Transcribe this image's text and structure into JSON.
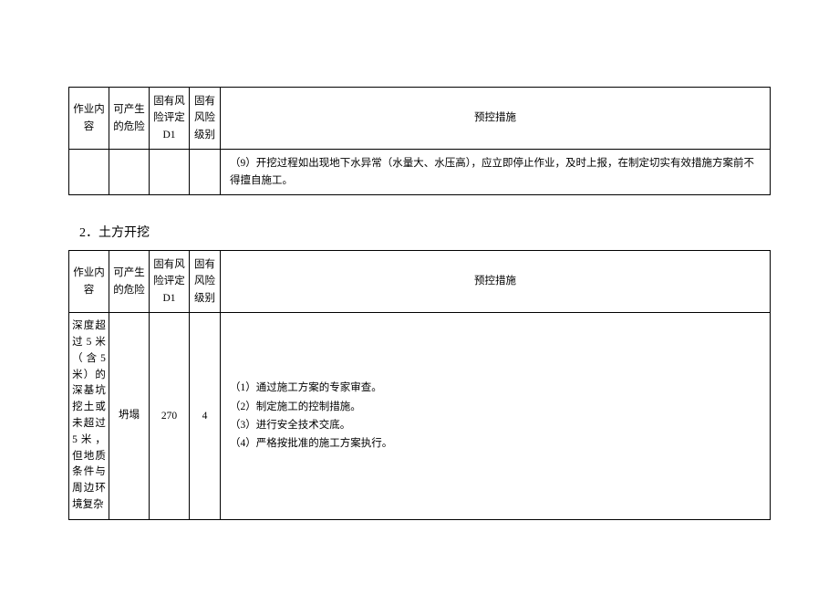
{
  "table1": {
    "headers": {
      "c1": "作业内容",
      "c2": "可产生的危险",
      "c3": "固有风险评定D1",
      "c4": "固有风险级别",
      "c5": "预控措施"
    },
    "row": {
      "c1": "",
      "c2": "",
      "c3": "",
      "c4": "",
      "c5": "（9）开挖过程如出现地下水异常（水量大、水压高），应立即停止作业，及时上报，在制定切实有效措施方案前不得擅自施工。"
    }
  },
  "section2_title": "2．土方开挖",
  "table2": {
    "headers": {
      "c1": "作业内容",
      "c2": "可产生的危险",
      "c3": "固有风险评定D1",
      "c4": "固有风险级别",
      "c5": "预控措施"
    },
    "row": {
      "c1": "深度超过5米（含5米）的深基坑挖土或未超过5米，但地质条件与周边环境复杂",
      "c2": "坍塌",
      "c3": "270",
      "c4": "4",
      "m1": "（1）通过施工方案的专家审查。",
      "m2": "（2）制定施工的控制措施。",
      "m3": "（3）进行安全技术交底。",
      "m4": "（4）严格按批准的施工方案执行。"
    }
  },
  "style": {
    "columns": {
      "c1": 44,
      "c2": 44,
      "c3": 44,
      "c4": 34
    },
    "border_color": "#000000",
    "background_color": "#ffffff",
    "text_color": "#000000",
    "header_fontsize": 11.5,
    "body_fontsize": 11.5,
    "section_title_fontsize": 14
  }
}
